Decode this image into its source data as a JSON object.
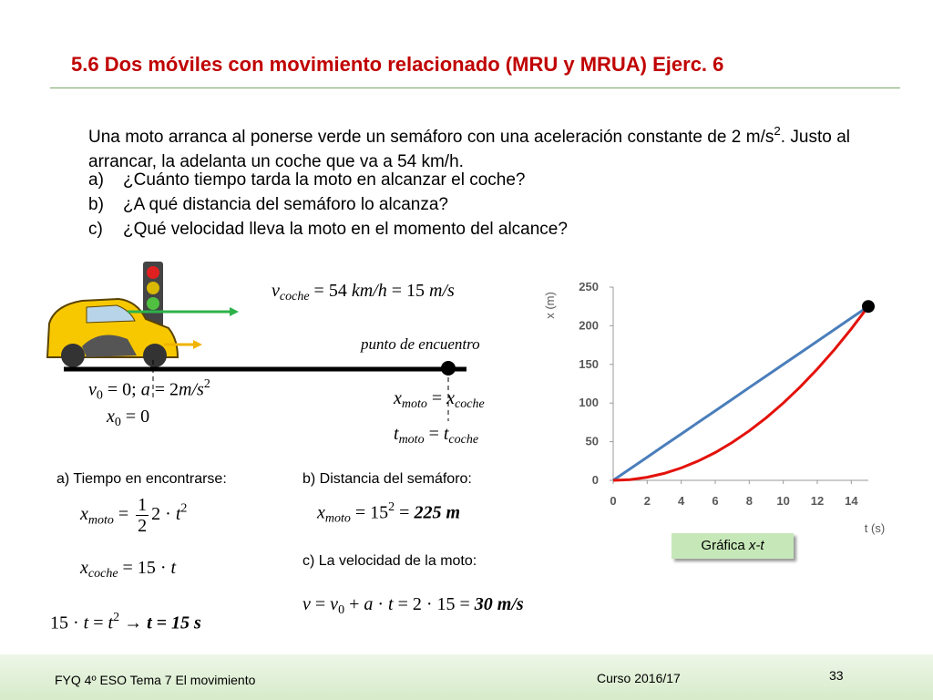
{
  "header": {
    "title": "5.6  Dos móviles con movimiento relacionado (MRU y MRUA) Ejerc. 6"
  },
  "statement": {
    "intro": [
      {
        "text": "Una moto arranca al ponerse verde un semáforo con una aceleración constante de 2 m/s"
      },
      {
        "text": "2",
        "pos": "sup"
      },
      {
        "text": ". Justo al arrancar, la adelanta un coche que va a 54 km/h."
      }
    ],
    "questions": [
      {
        "label": "a)",
        "text": "¿Cuánto tiempo tarda la moto en alcanzar el coche?"
      },
      {
        "label": "b)",
        "text": "¿A qué distancia del semáforo lo alcanza?"
      },
      {
        "label": "c)",
        "text": "¿Qué velocidad lleva la moto en el momento del alcance?"
      }
    ]
  },
  "formulas": {
    "v_coche": [
      {
        "text": "v",
        "italic": true
      },
      {
        "text": "coche",
        "pos": "sub",
        "italic": true
      },
      {
        "text": " = 54 "
      },
      {
        "text": "km/h",
        "italic": true
      },
      {
        "text": " = 15 "
      },
      {
        "text": "m/s",
        "italic": true
      }
    ],
    "encuentro": [
      {
        "text": "punto de encuentro",
        "italic": true
      }
    ],
    "v0": [
      {
        "text": "v",
        "italic": true
      },
      {
        "text": "0",
        "pos": "sub"
      },
      {
        "text": " = 0; "
      },
      {
        "text": "a",
        "italic": true
      },
      {
        "text": " = 2"
      },
      {
        "text": "m/s",
        "italic": true
      },
      {
        "text": "2",
        "pos": "sup"
      }
    ],
    "x0": [
      {
        "text": "x",
        "italic": true
      },
      {
        "text": "0",
        "pos": "sub"
      },
      {
        "text": " = 0"
      }
    ],
    "x_eq": [
      {
        "text": "x",
        "italic": true
      },
      {
        "text": "moto",
        "pos": "sub",
        "italic": true
      },
      {
        "text": " = "
      },
      {
        "text": "x",
        "italic": true
      },
      {
        "text": "coche",
        "pos": "sub",
        "italic": true
      }
    ],
    "t_eq": [
      {
        "text": "t",
        "italic": true
      },
      {
        "text": "moto",
        "pos": "sub",
        "italic": true
      },
      {
        "text": " = "
      },
      {
        "text": "t",
        "italic": true
      },
      {
        "text": "coche",
        "pos": "sub",
        "italic": true
      }
    ],
    "x_moto": [
      {
        "text": "x",
        "italic": true
      },
      {
        "text": "moto",
        "pos": "sub",
        "italic": true
      },
      {
        "text": " = "
      },
      {
        "frac": {
          "num": "1",
          "den": "2"
        }
      },
      {
        "text": "2 · "
      },
      {
        "text": "t",
        "italic": true
      },
      {
        "text": "2",
        "pos": "sup"
      }
    ],
    "x_coche": [
      {
        "text": "x",
        "italic": true
      },
      {
        "text": "coche",
        "pos": "sub",
        "italic": true
      },
      {
        "text": " = 15 · "
      },
      {
        "text": "t",
        "italic": true
      }
    ],
    "solve_t": [
      {
        "text": "15 · "
      },
      {
        "text": "t",
        "italic": true
      },
      {
        "text": " = "
      },
      {
        "text": "t",
        "italic": true
      },
      {
        "text": "2",
        "pos": "sup"
      },
      {
        "text": "  → "
      },
      {
        "text": "t = 15 s",
        "italic": true,
        "bold": true
      }
    ],
    "solve_x": [
      {
        "text": "x",
        "italic": true
      },
      {
        "text": "moto",
        "pos": "sub",
        "italic": true
      },
      {
        "text": " = 15"
      },
      {
        "text": "2",
        "pos": "sup"
      },
      {
        "text": " = "
      },
      {
        "text": "225 m",
        "italic": true,
        "bold": true
      }
    ],
    "solve_v": [
      {
        "text": "v",
        "italic": true
      },
      {
        "text": " = "
      },
      {
        "text": "v",
        "italic": true
      },
      {
        "text": "0",
        "pos": "sub"
      },
      {
        "text": " + "
      },
      {
        "text": "a",
        "italic": true
      },
      {
        "text": " · "
      },
      {
        "text": "t",
        "italic": true
      },
      {
        "text": " = 2 · 15 = "
      },
      {
        "text": "30 m/s",
        "italic": true,
        "bold": true
      }
    ]
  },
  "labels": {
    "a": "a) Tiempo en encontrarse:",
    "b": "b) Distancia del semáforo:",
    "c": "c) La velocidad de la moto:"
  },
  "chart_data": {
    "type": "line",
    "x_label": "t (s)",
    "y_label": "x (m)",
    "x": [
      0,
      1,
      2,
      3,
      4,
      5,
      6,
      7,
      8,
      9,
      10,
      11,
      12,
      13,
      14,
      15
    ],
    "series": [
      {
        "color": "#4a7ebb",
        "values": [
          0,
          15,
          30,
          45,
          60,
          75,
          90,
          105,
          120,
          135,
          150,
          165,
          180,
          195,
          210,
          225
        ]
      },
      {
        "color": "#e3120b",
        "values": [
          0,
          1,
          4,
          9,
          16,
          25,
          36,
          49,
          64,
          81,
          100,
          121,
          144,
          169,
          196,
          225
        ]
      }
    ],
    "xlim": [
      0,
      15
    ],
    "ylim": [
      0,
      250
    ],
    "xticks": [
      0,
      2,
      4,
      6,
      8,
      10,
      12,
      14
    ],
    "yticks": [
      0,
      50,
      100,
      150,
      200,
      250
    ],
    "caption": [
      {
        "text": "Gráfica "
      },
      {
        "text": "x-t",
        "italic": true
      }
    ]
  },
  "footer": {
    "left": "FYQ 4º ESO  Tema  7 El movimiento",
    "center": "Curso 2016/17",
    "page": "33"
  }
}
